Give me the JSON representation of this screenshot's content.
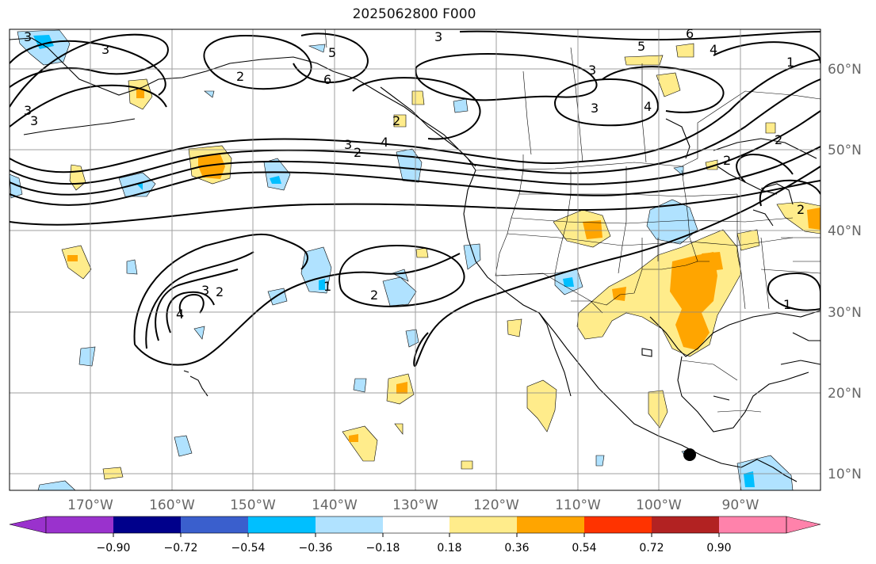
{
  "title": "2025062800 F000",
  "latitude_labels": [
    "60°N",
    "50°N",
    "40°N",
    "30°N",
    "20°N",
    "10°N"
  ],
  "longitude_labels": [
    "170°W",
    "160°W",
    "150°W",
    "140°W",
    "130°W",
    "120°W",
    "110°W",
    "100°W",
    "90°W"
  ],
  "contour_labels": [
    "3",
    "3",
    "3",
    "5",
    "6",
    "5",
    "3",
    "3",
    "4",
    "4",
    "1",
    "2",
    "2",
    "2",
    "3",
    "3",
    "2",
    "4",
    "3",
    "2",
    "6",
    "1",
    "2",
    "1",
    "2",
    "2",
    "4",
    "3"
  ],
  "colorbar": {
    "tick_labels": [
      "−0.90",
      "−0.72",
      "−0.54",
      "−0.36",
      "−0.18",
      "0.18",
      "0.36",
      "0.54",
      "0.72",
      "0.90"
    ],
    "colors": [
      "#9a32cd",
      "#00008b",
      "#3a5fcd",
      "#00bfff",
      "#b0e2ff",
      "#ffffff",
      "#ffec8b",
      "#ffa500",
      "#ff3300",
      "#b22222",
      "#ff82ab"
    ]
  },
  "colors": {
    "light_blue": "#b0e2ff",
    "blue": "#00bfff",
    "light_yellow": "#ffec8b",
    "orange": "#ffa500"
  }
}
